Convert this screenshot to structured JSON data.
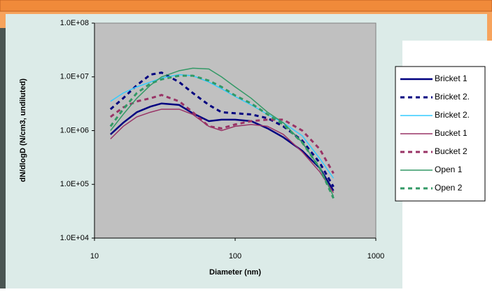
{
  "chart_data": {
    "type": "line",
    "x_label": "Diameter (nm)",
    "y_label": "dN/dlogD (N/cm3, undiluted)",
    "x": [
      13,
      16,
      20,
      25,
      30,
      40,
      50,
      65,
      80,
      100,
      130,
      170,
      220,
      300,
      400,
      500
    ],
    "xlim": [
      10,
      1000
    ],
    "xticks": [
      10,
      100,
      1000
    ],
    "xlog": true,
    "ylim": [
      10000,
      100000000
    ],
    "ylog": true,
    "yticks": [
      {
        "value": 10000,
        "label": "1.0E+04"
      },
      {
        "value": 100000,
        "label": "1.0E+05"
      },
      {
        "value": 1000000,
        "label": "1.0E+06"
      },
      {
        "value": 10000000,
        "label": "1.0E+07"
      },
      {
        "value": 100000000,
        "label": "1.0E+08"
      }
    ],
    "grid": false,
    "series": [
      {
        "name": "Bricket 1",
        "color": "#000080",
        "style": "solid",
        "values": [
          850000,
          1400000,
          2200000,
          2800000,
          3200000,
          3000000,
          2100000,
          1500000,
          1600000,
          1600000,
          1500000,
          1100000,
          750000,
          420000,
          200000,
          76000
        ]
      },
      {
        "name": "Bricket 2.",
        "color": "#000080",
        "style": "dashed",
        "values": [
          2500000,
          4000000,
          7000000,
          11000000,
          12000000,
          8000000,
          5000000,
          3000000,
          2200000,
          2100000,
          2000000,
          1700000,
          1200000,
          650000,
          250000,
          90000
        ]
      },
      {
        "name": "Bricket 2.",
        "color": "#33ccff",
        "style": "solid",
        "values": [
          3500000,
          5000000,
          6500000,
          8000000,
          9500000,
          11000000,
          10500000,
          8000000,
          6000000,
          4300000,
          3000000,
          2000000,
          1400000,
          800000,
          300000,
          130000
        ]
      },
      {
        "name": "Bucket 1",
        "color": "#993366",
        "style": "solid",
        "values": [
          700000,
          1200000,
          1800000,
          2200000,
          2500000,
          2500000,
          2000000,
          1200000,
          1000000,
          1200000,
          1300000,
          1200000,
          850000,
          400000,
          170000,
          70000
        ]
      },
      {
        "name": "Bucket 2",
        "color": "#993366",
        "style": "dashed",
        "values": [
          1800000,
          2700000,
          3500000,
          4000000,
          4600000,
          3500000,
          2200000,
          1200000,
          1100000,
          1300000,
          1500000,
          1600000,
          1600000,
          1000000,
          450000,
          160000
        ]
      },
      {
        "name": "Open 1",
        "color": "#339966",
        "style": "solid",
        "values": [
          1000000,
          2000000,
          4000000,
          7000000,
          10000000,
          13000000,
          14500000,
          14000000,
          10000000,
          6500000,
          4000000,
          2200000,
          1400000,
          600000,
          200000,
          60000
        ]
      },
      {
        "name": "Open 2",
        "color": "#339966",
        "style": "dashed",
        "values": [
          1200000,
          2500000,
          5000000,
          7500000,
          9000000,
          10500000,
          10500000,
          8500000,
          6500000,
          4500000,
          3200000,
          2000000,
          1300000,
          600000,
          200000,
          55000
        ]
      }
    ]
  }
}
